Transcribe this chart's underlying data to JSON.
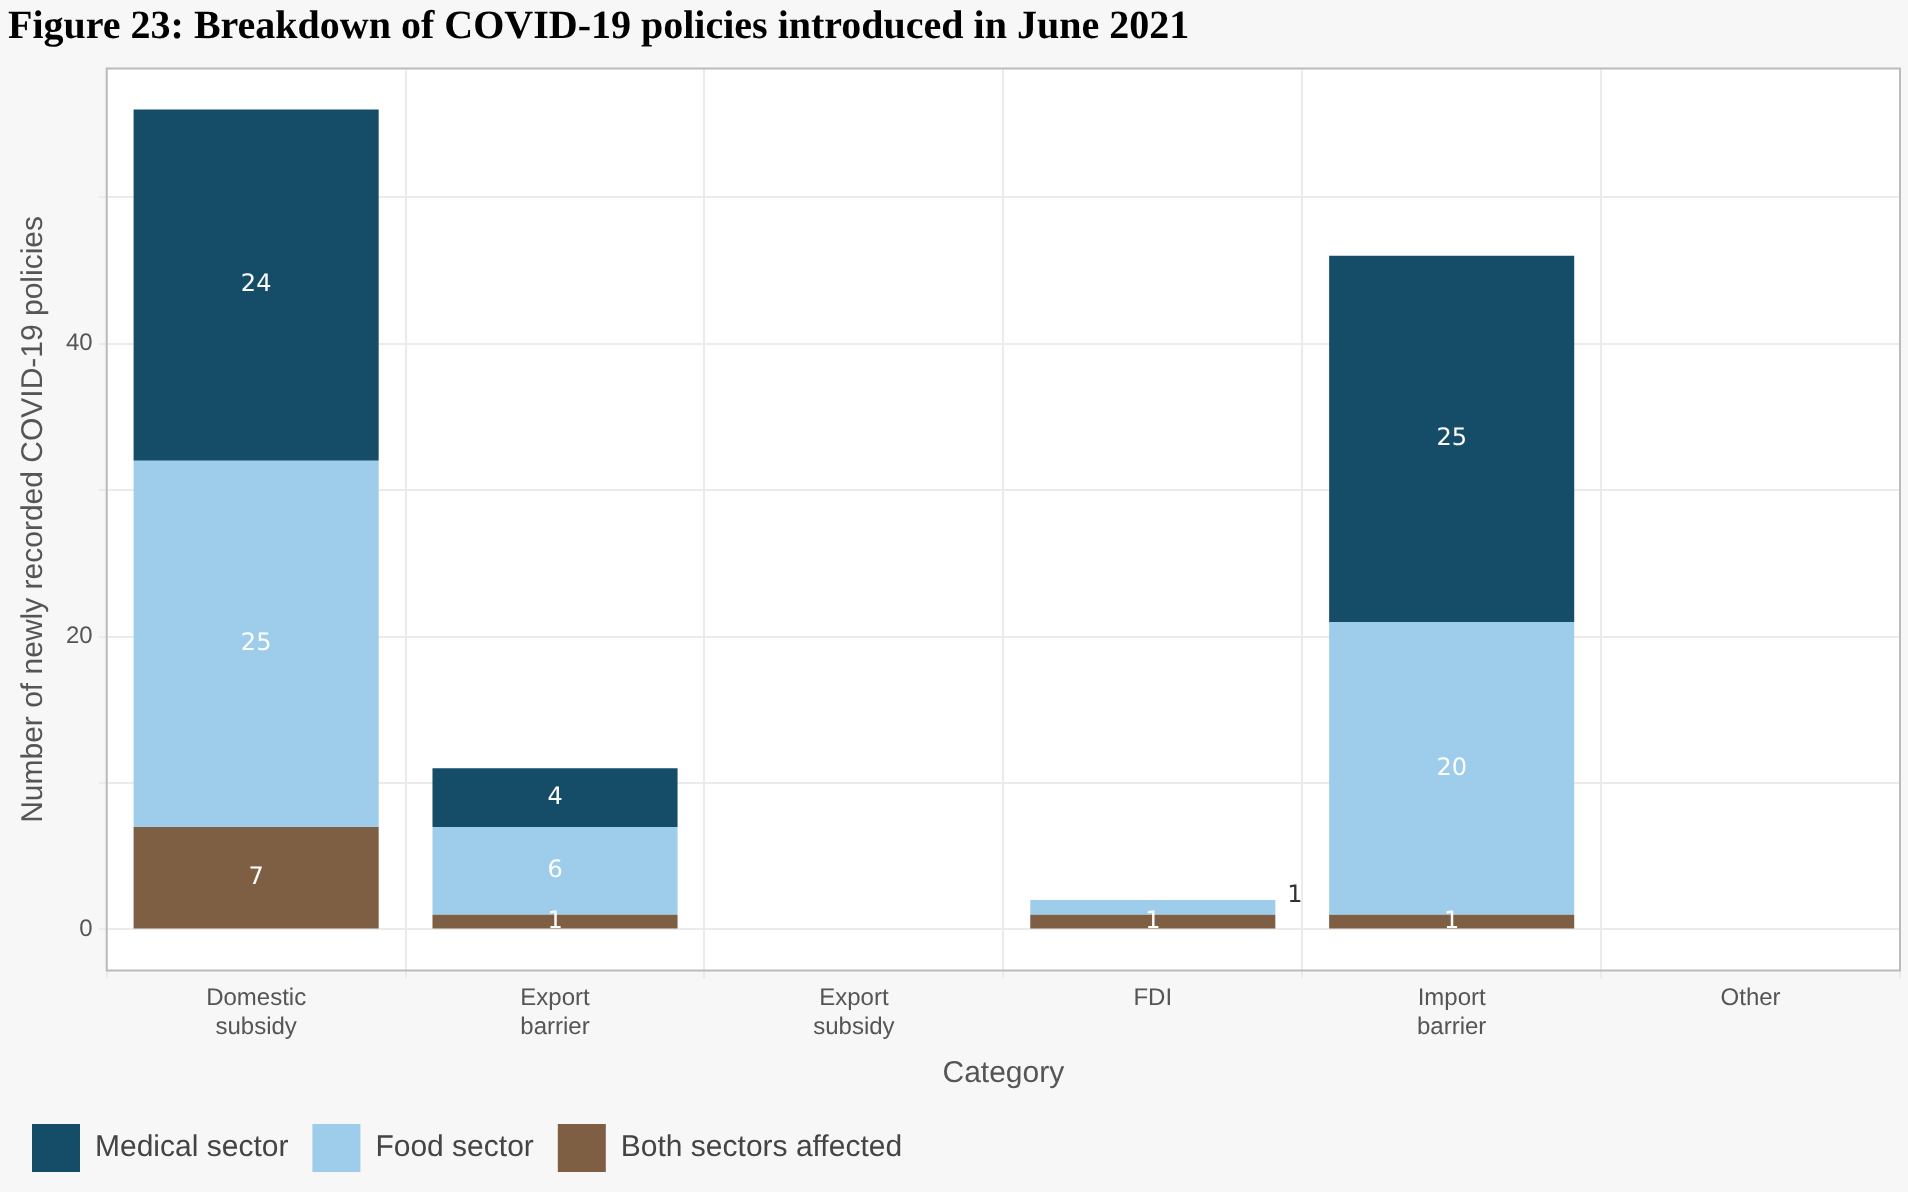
{
  "chart_data": {
    "type": "bar",
    "title": "Figure 23: Breakdown of COVID-19 policies introduced in June 2021",
    "xlabel": "Category",
    "ylabel": "Number of newly recorded COVID-19 policies",
    "categories": [
      "Domestic\nsubsidy",
      "Export\nbarrier",
      "Export\nsubsidy",
      "FDI",
      "Import\nbarrier",
      "Other"
    ],
    "stacked": true,
    "series": [
      {
        "name": "Both sectors affected",
        "color": "#7f5f44",
        "values": [
          7,
          1,
          0,
          1,
          1,
          0
        ],
        "value_labels": [
          "7",
          "1",
          null,
          "1",
          "1",
          null
        ]
      },
      {
        "name": "Food sector",
        "color": "#9dcdea",
        "values": [
          25,
          6,
          0,
          1,
          20,
          0
        ],
        "value_labels": [
          "25",
          "6",
          null,
          "1",
          "20",
          null
        ]
      },
      {
        "name": "Medical sector",
        "color": "#154d69",
        "values": [
          24,
          4,
          0,
          0,
          25,
          0
        ],
        "value_labels": [
          "24",
          "4",
          null,
          null,
          "25",
          null
        ]
      }
    ],
    "ylim": [
      -2.8,
      58.8
    ],
    "yticks": [
      0,
      {
        "value": 10,
        "label": null
      },
      20,
      {
        "value": 30,
        "label": null
      },
      40,
      {
        "value": 50,
        "label": null
      }
    ],
    "grid": true,
    "legend": "bottom left"
  }
}
